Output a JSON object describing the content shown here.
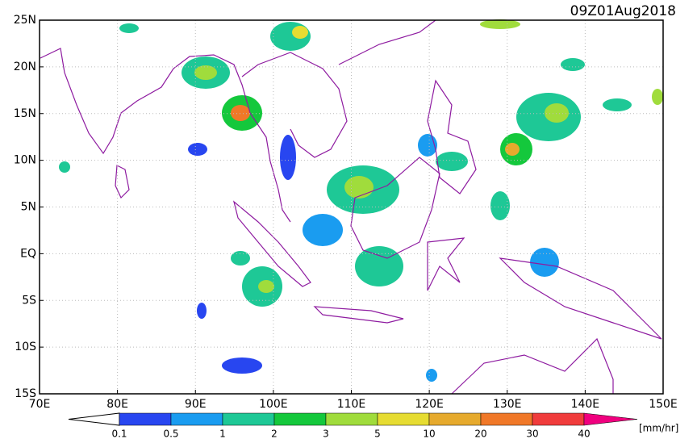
{
  "map": {
    "title": "09Z01Aug2018",
    "xlim": [
      70,
      150
    ],
    "ylim": [
      -15,
      25
    ],
    "xticks": [
      {
        "value": 70,
        "label": "70E"
      },
      {
        "value": 80,
        "label": "80E"
      },
      {
        "value": 90,
        "label": "90E"
      },
      {
        "value": 100,
        "label": "100E"
      },
      {
        "value": 110,
        "label": "110E"
      },
      {
        "value": 120,
        "label": "120E"
      },
      {
        "value": 130,
        "label": "130E"
      },
      {
        "value": 140,
        "label": "140E"
      },
      {
        "value": 150,
        "label": "150E"
      }
    ],
    "yticks": [
      {
        "value": 25,
        "label": "25N"
      },
      {
        "value": 20,
        "label": "20N"
      },
      {
        "value": 15,
        "label": "15N"
      },
      {
        "value": 10,
        "label": "10N"
      },
      {
        "value": 5,
        "label": "5N"
      },
      {
        "value": 0,
        "label": "EQ"
      },
      {
        "value": -5,
        "label": "5S"
      },
      {
        "value": -10,
        "label": "10S"
      },
      {
        "value": -15,
        "label": "15S"
      }
    ],
    "grid": true,
    "colorbar": {
      "unit": "[mm/hr]",
      "levels": [
        0.1,
        0.5,
        1,
        2,
        3,
        5,
        10,
        20,
        30,
        40
      ],
      "colors": [
        "#ffffff",
        "#2846f0",
        "#1a9cf0",
        "#1ec896",
        "#14c83c",
        "#a0dc3c",
        "#e6dc32",
        "#e6aa2d",
        "#f07828",
        "#f03c3c",
        "#f0007f"
      ]
    }
  }
}
